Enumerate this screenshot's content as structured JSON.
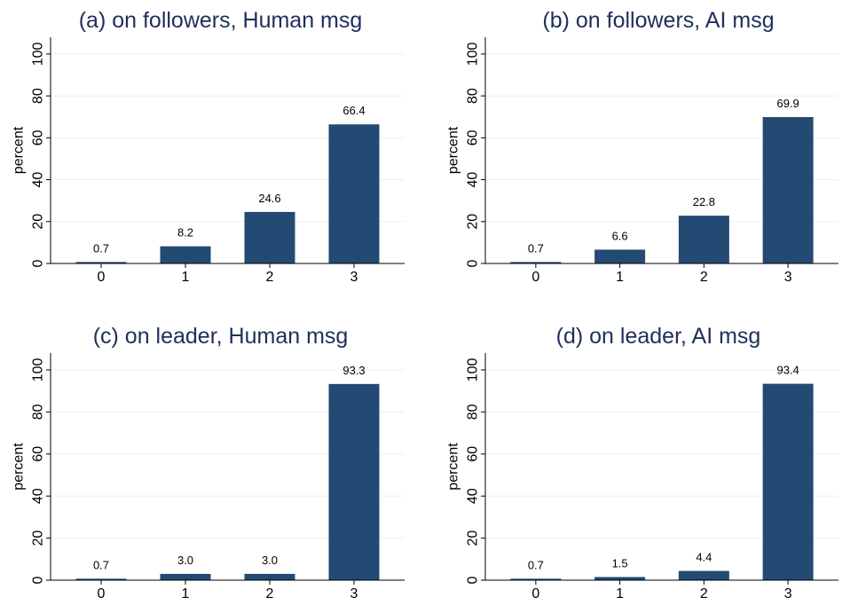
{
  "chart_data": [
    {
      "type": "bar",
      "title": "(a) on followers, Human msg",
      "ylabel": "percent",
      "xlabel": "",
      "categories": [
        "0",
        "1",
        "2",
        "3"
      ],
      "values": [
        0.7,
        8.2,
        24.6,
        66.4
      ],
      "labels": [
        "0.7",
        "8.2",
        "24.6",
        "66.4"
      ],
      "yticks": [
        "0",
        "20",
        "40",
        "60",
        "80",
        "100"
      ],
      "ylim": [
        0,
        108
      ],
      "grid": true
    },
    {
      "type": "bar",
      "title": "(b) on followers, AI msg",
      "ylabel": "percent",
      "xlabel": "",
      "categories": [
        "0",
        "1",
        "2",
        "3"
      ],
      "values": [
        0.7,
        6.6,
        22.8,
        69.9
      ],
      "labels": [
        "0.7",
        "6.6",
        "22.8",
        "69.9"
      ],
      "yticks": [
        "0",
        "20",
        "40",
        "60",
        "80",
        "100"
      ],
      "ylim": [
        0,
        108
      ],
      "grid": true
    },
    {
      "type": "bar",
      "title": "(c) on leader, Human msg",
      "ylabel": "percent",
      "xlabel": "",
      "categories": [
        "0",
        "1",
        "2",
        "3"
      ],
      "values": [
        0.7,
        3.0,
        3.0,
        93.3
      ],
      "labels": [
        "0.7",
        "3.0",
        "3.0",
        "93.3"
      ],
      "yticks": [
        "0",
        "20",
        "40",
        "60",
        "80",
        "100"
      ],
      "ylim": [
        0,
        108
      ],
      "grid": true
    },
    {
      "type": "bar",
      "title": "(d) on leader, AI msg",
      "ylabel": "percent",
      "xlabel": "",
      "categories": [
        "0",
        "1",
        "2",
        "3"
      ],
      "values": [
        0.7,
        1.5,
        4.4,
        93.4
      ],
      "labels": [
        "0.7",
        "1.5",
        "4.4",
        "93.4"
      ],
      "yticks": [
        "0",
        "20",
        "40",
        "60",
        "80",
        "100"
      ],
      "ylim": [
        0,
        108
      ],
      "grid": true
    }
  ],
  "colors": {
    "bar": "#234a72",
    "title": "#1f2f5a",
    "grid": "#eaf0f3",
    "axis": "#000000",
    "text": "#000000"
  }
}
